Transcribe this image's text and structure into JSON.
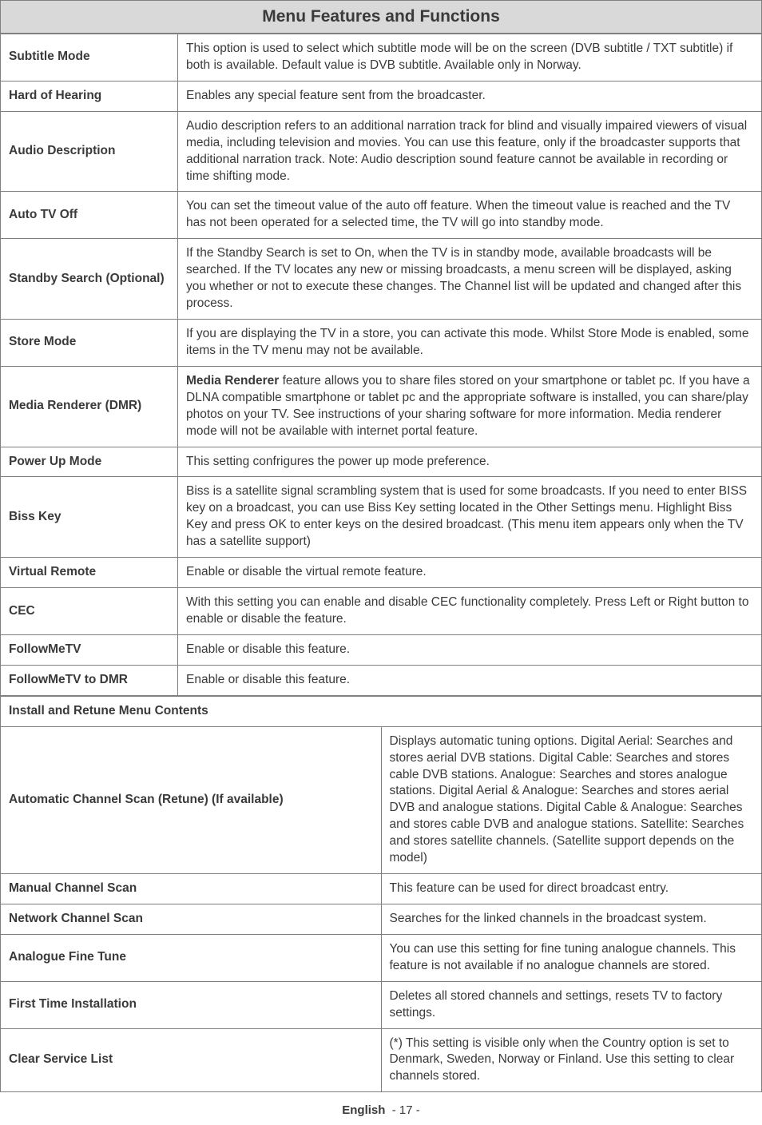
{
  "header_title": "Menu Features and Functions",
  "rows": [
    {
      "label": "Subtitle Mode",
      "desc": "This option is used to select which subtitle mode will be on the screen (DVB subtitle / TXT subtitle) if both is available. Default value is DVB subtitle. Available only in Norway."
    },
    {
      "label": "Hard of Hearing",
      "desc": "Enables any special feature sent from the broadcaster."
    },
    {
      "label": "Audio Description",
      "desc": "Audio description refers to an additional narration track for blind and visually impaired viewers of visual media, including television and movies. You can use this feature, only if the broadcaster supports that additional narration track. Note: Audio description sound feature cannot be available in recording or time shifting mode."
    },
    {
      "label": "Auto TV Off",
      "desc": "You can set the timeout value of the auto off feature. When the timeout value is reached and the TV has not been operated for a selected time, the TV will go into standby mode."
    },
    {
      "label": "Standby Search (Optional)",
      "desc": "If the Standby Search is set to On, when the TV is in standby mode, available broadcasts will be searched. If the TV locates any new or missing broadcasts, a menu screen will be displayed, asking you whether or not to execute these changes. The Channel list will be updated and changed after this process."
    },
    {
      "label": "Store Mode",
      "desc": "If you are displaying the TV in a store, you can activate this mode. Whilst Store Mode is enabled, some items in the TV menu may not be available."
    },
    {
      "label": "Media Renderer (DMR)",
      "desc_html": "<b>Media Renderer</b> feature allows you to share files stored on your smartphone or tablet pc. If you have a DLNA compatible smartphone or tablet pc and the appropriate software is installed, you can share/play photos on your TV. See instructions of your sharing software for more information. Media renderer mode will not be available with internet portal feature."
    },
    {
      "label": "Power Up Mode",
      "desc": "This setting confrigures the power up mode preference."
    },
    {
      "label": "Biss Key",
      "desc": "Biss is a satellite signal scrambling system that is used for some broadcasts. If you need to enter BISS key on a broadcast, you can use Biss Key setting located in the Other Settings menu. Highlight Biss Key and press OK to enter keys on the desired broadcast. (This menu item appears only when the TV has a satellite support)"
    },
    {
      "label": "Virtual Remote",
      "desc": "Enable or disable the virtual remote feature."
    },
    {
      "label": "CEC",
      "desc": "With this setting you can enable and disable CEC functionality completely. Press Left or Right button to enable or disable the feature."
    },
    {
      "label": "FollowMeTV",
      "desc": "Enable or disable this feature."
    },
    {
      "label": "FollowMeTV to DMR",
      "desc": "Enable or disable this feature."
    }
  ],
  "section_heading": "Install and Retune Menu Contents",
  "rows2": [
    {
      "label": "Automatic Channel Scan (Retune) (If available)",
      "desc": "Displays automatic tuning options. Digital Aerial: Searches and stores aerial DVB stations. Digital Cable: Searches and stores cable DVB stations. Analogue: Searches and stores analogue stations. Digital Aerial & Analogue: Searches and stores aerial DVB and analogue stations. Digital Cable & Analogue: Searches and stores cable DVB and analogue stations. Satellite: Searches and stores satellite channels. (Satellite support depends on the model)"
    },
    {
      "label": "Manual Channel Scan",
      "desc": "This feature can be used for direct broadcast entry."
    },
    {
      "label": "Network Channel Scan",
      "desc": "Searches for the linked channels in the broadcast system."
    },
    {
      "label": "Analogue Fine Tune",
      "desc": "You can use this setting for fine tuning analogue channels. This feature is not available if no analogue channels are stored."
    },
    {
      "label": "First Time Installation",
      "desc": "Deletes all stored channels and settings, resets TV to factory settings."
    },
    {
      "label": "Clear Service List",
      "desc": "(*) This setting is visible only when the Country option is set to Denmark, Sweden, Norway or Finland. Use this setting to clear channels stored."
    }
  ],
  "footer_lang": "English",
  "footer_page": "- 17 -"
}
